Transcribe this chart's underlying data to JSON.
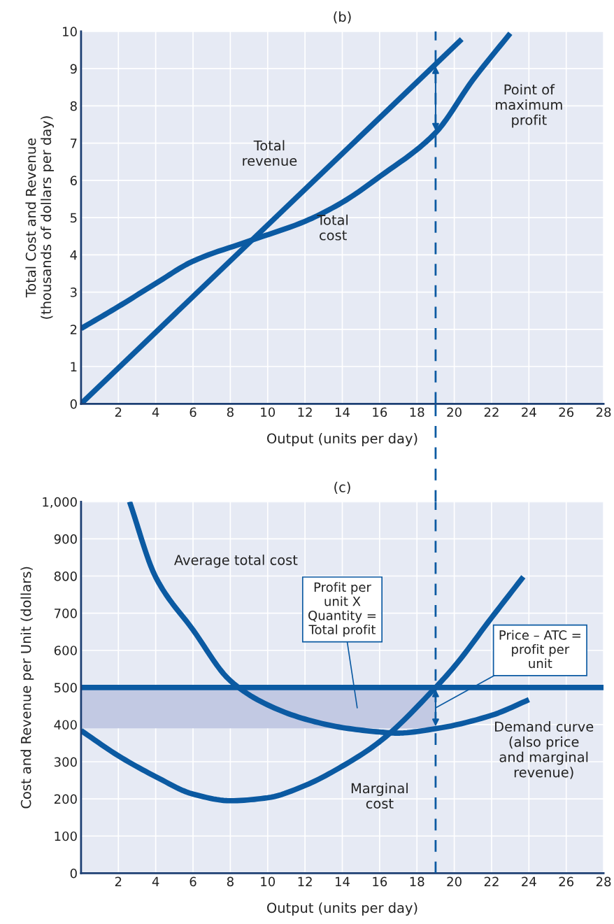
{
  "chart_data": [
    {
      "type": "line",
      "title": "(b)",
      "xlabel": "Output (units per day)",
      "ylabel": "Total Cost and Revenue\n(thousands of dollars per day)",
      "series": [
        {
          "color": "#0b5aa2",
          "x": [
            0,
            20.4
          ],
          "values": [
            0,
            9.79
          ]
        },
        {
          "color": "#0b5aa2",
          "x": [
            0,
            2,
            4,
            6,
            9,
            12,
            14,
            16,
            19,
            21,
            23
          ],
          "values": [
            2.02,
            2.61,
            3.23,
            3.83,
            4.37,
            4.9,
            5.41,
            6.1,
            7.28,
            8.7,
            9.95
          ]
        }
      ],
      "xlim": [
        0,
        28
      ],
      "xticks": [
        2,
        4,
        6,
        8,
        10,
        12,
        14,
        16,
        18,
        20,
        22,
        24,
        26,
        28
      ],
      "ylim": [
        0,
        10
      ],
      "yticks": [
        0,
        1,
        2,
        3,
        4,
        5,
        6,
        7,
        8,
        9,
        10
      ],
      "grid": true,
      "line_style": "solid",
      "ref_lines": [
        {
          "axis": "x",
          "value": 19,
          "color": "#0b5aa2",
          "line_style": "dashed"
        }
      ],
      "annotations": [
        "Total\nrevenue",
        "Total\ncost",
        "Point of\nmaximum\nprofit"
      ]
    },
    {
      "type": "line",
      "title": "(c)",
      "xlabel": "Output (units per day)",
      "ylabel": "Cost and Revenue per Unit (dollars)",
      "series": [
        {
          "color": "#0b5aa2",
          "x": [
            2.6,
            4,
            6,
            8,
            10,
            12,
            14,
            16,
            16.9,
            19,
            22,
            24
          ],
          "values": [
            1000,
            797,
            655,
            518,
            453,
            415,
            392,
            380,
            377,
            389,
            425,
            467
          ]
        },
        {
          "color": "#0b5aa2",
          "x": [
            0,
            2,
            4,
            6,
            8,
            10,
            12,
            14,
            16,
            19,
            20,
            22,
            23.7
          ],
          "values": [
            384,
            316,
            260,
            213,
            195,
            203,
            236,
            288,
            354,
            500,
            556,
            688,
            798
          ]
        },
        {
          "color": "#0b5aa2",
          "x": [
            0,
            28
          ],
          "values": [
            500,
            500
          ]
        }
      ],
      "xlim": [
        0,
        28
      ],
      "xticks": [
        2,
        4,
        6,
        8,
        10,
        12,
        14,
        16,
        18,
        20,
        22,
        24,
        26,
        28
      ],
      "ylim": [
        0,
        1000
      ],
      "yticks": [
        0,
        100,
        200,
        300,
        400,
        500,
        600,
        700,
        800,
        900,
        {
          "value": 1000,
          "label": "1,000"
        }
      ],
      "grid": true,
      "line_style": "solid",
      "ref_lines": [
        {
          "axis": "x",
          "value": 19,
          "color": "#0b5aa2",
          "line_style": "dashed"
        }
      ],
      "bands": [
        {
          "axis": "y",
          "from": 390,
          "to": 500,
          "color": "#c2c9e3"
        }
      ],
      "annotations": [
        "Average total cost",
        "Profit per\nunit X\nQuantity =\nTotal profit",
        {
          "text": "Price – ATC =\nprofit per\nunit",
          "x": 19,
          "y": 445
        },
        "Demand curve\n(also price\nand marginal\nrevenue)",
        "Marginal\ncost"
      ]
    }
  ]
}
